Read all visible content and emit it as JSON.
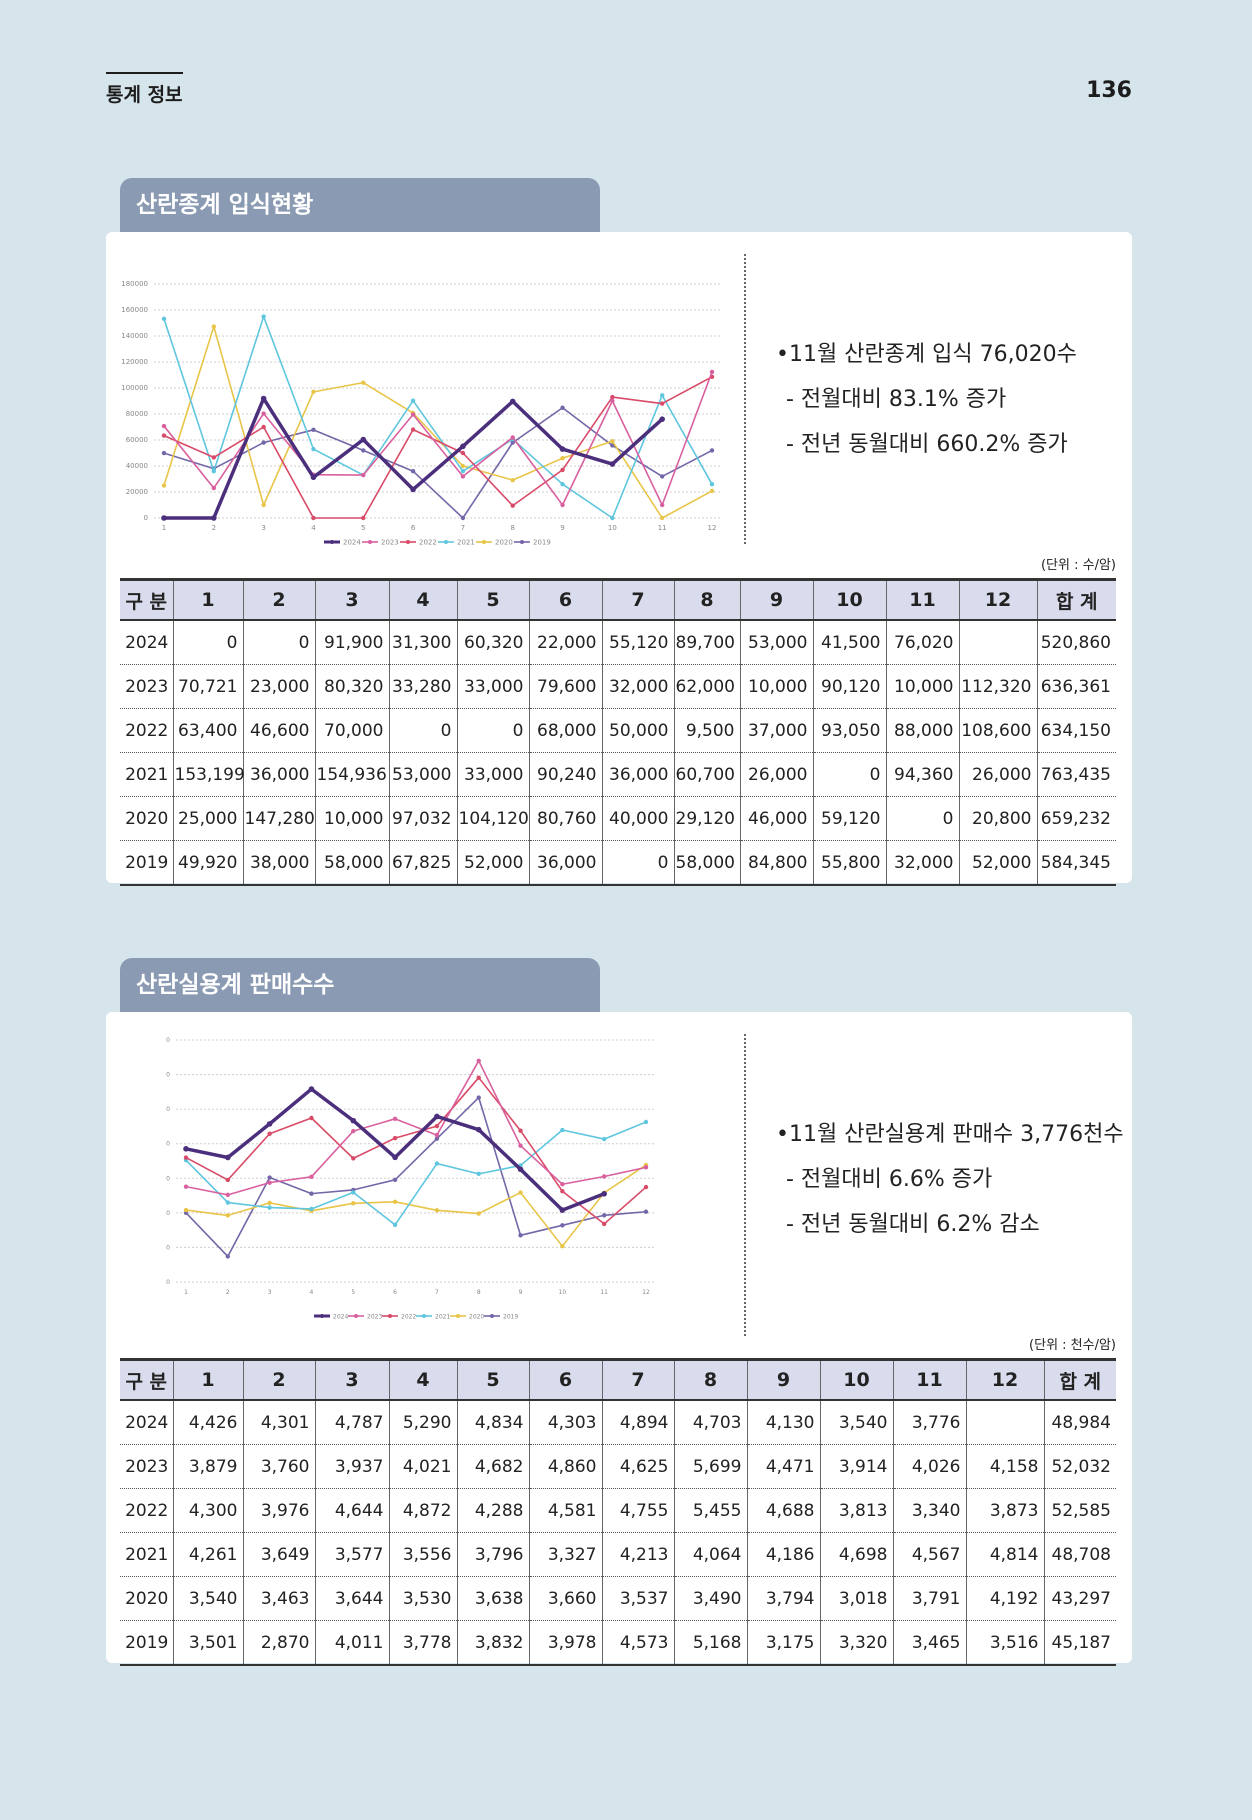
{
  "header": {
    "section": "통계 정보",
    "page": "136"
  },
  "section1": {
    "title": "산란종계 입식현황",
    "summary": {
      "bullet": "•11월 산란종계 입식 76,020수",
      "sub1": "- 전월대비 83.1% 증가",
      "sub2": "- 전년 동월대비 660.2% 증가"
    },
    "unit": "(단위 : 수/암)",
    "table": {
      "headers": [
        "구 분",
        "1",
        "2",
        "3",
        "4",
        "5",
        "6",
        "7",
        "8",
        "9",
        "10",
        "11",
        "12",
        "합 계"
      ],
      "rows": [
        [
          "2024",
          "0",
          "0",
          "91,900",
          "31,300",
          "60,320",
          "22,000",
          "55,120",
          "89,700",
          "53,000",
          "41,500",
          "76,020",
          "",
          "520,860"
        ],
        [
          "2023",
          "70,721",
          "23,000",
          "80,320",
          "33,280",
          "33,000",
          "79,600",
          "32,000",
          "62,000",
          "10,000",
          "90,120",
          "10,000",
          "112,320",
          "636,361"
        ],
        [
          "2022",
          "63,400",
          "46,600",
          "70,000",
          "0",
          "0",
          "68,000",
          "50,000",
          "9,500",
          "37,000",
          "93,050",
          "88,000",
          "108,600",
          "634,150"
        ],
        [
          "2021",
          "153,199",
          "36,000",
          "154,936",
          "53,000",
          "33,000",
          "90,240",
          "36,000",
          "60,700",
          "26,000",
          "0",
          "94,360",
          "26,000",
          "763,435"
        ],
        [
          "2020",
          "25,000",
          "147,280",
          "10,000",
          "97,032",
          "104,120",
          "80,760",
          "40,000",
          "29,120",
          "46,000",
          "59,120",
          "0",
          "20,800",
          "659,232"
        ],
        [
          "2019",
          "49,920",
          "38,000",
          "58,000",
          "67,825",
          "52,000",
          "36,000",
          "0",
          "58,000",
          "84,800",
          "55,800",
          "32,000",
          "52,000",
          "584,345"
        ]
      ]
    }
  },
  "section2": {
    "title": "산란실용계 판매수수",
    "summary": {
      "bullet": "•11월 산란실용계 판매수 3,776천수",
      "sub1": "- 전월대비 6.6% 증가",
      "sub2": "- 전년 동월대비 6.2% 감소"
    },
    "unit": "(단위 : 천수/암)",
    "table": {
      "headers": [
        "구 분",
        "1",
        "2",
        "3",
        "4",
        "5",
        "6",
        "7",
        "8",
        "9",
        "10",
        "11",
        "12",
        "합 계"
      ],
      "rows": [
        [
          "2024",
          "4,426",
          "4,301",
          "4,787",
          "5,290",
          "4,834",
          "4,303",
          "4,894",
          "4,703",
          "4,130",
          "3,540",
          "3,776",
          "",
          "48,984"
        ],
        [
          "2023",
          "3,879",
          "3,760",
          "3,937",
          "4,021",
          "4,682",
          "4,860",
          "4,625",
          "5,699",
          "4,471",
          "3,914",
          "4,026",
          "4,158",
          "52,032"
        ],
        [
          "2022",
          "4,300",
          "3,976",
          "4,644",
          "4,872",
          "4,288",
          "4,581",
          "4,755",
          "5,455",
          "4,688",
          "3,813",
          "3,340",
          "3,873",
          "52,585"
        ],
        [
          "2021",
          "4,261",
          "3,649",
          "3,577",
          "3,556",
          "3,796",
          "3,327",
          "4,213",
          "4,064",
          "4,186",
          "4,698",
          "4,567",
          "4,814",
          "48,708"
        ],
        [
          "2020",
          "3,540",
          "3,463",
          "3,644",
          "3,530",
          "3,638",
          "3,660",
          "3,537",
          "3,490",
          "3,794",
          "3,018",
          "3,791",
          "4,192",
          "43,297"
        ],
        [
          "2019",
          "3,501",
          "2,870",
          "4,011",
          "3,778",
          "3,832",
          "3,978",
          "4,573",
          "5,168",
          "3,175",
          "3,320",
          "3,465",
          "3,516",
          "45,187"
        ]
      ]
    }
  },
  "chart_data": [
    {
      "type": "line",
      "x": [
        1,
        2,
        3,
        4,
        5,
        6,
        7,
        8,
        9,
        10,
        11,
        12
      ],
      "ylim": [
        0,
        180000
      ],
      "yticks": [
        0,
        20000,
        40000,
        60000,
        80000,
        100000,
        120000,
        140000,
        160000,
        180000
      ],
      "ytick_labels": [
        "0",
        "20000",
        "40000",
        "60000",
        "80000",
        "100000",
        "120000",
        "140000",
        "160000",
        "180000"
      ],
      "legend_position": "bottom",
      "series": [
        {
          "name": "2024",
          "color": "#4b2e7c",
          "values": [
            0,
            0,
            91900,
            31300,
            60320,
            22000,
            55120,
            89700,
            53000,
            41500,
            76020,
            null
          ]
        },
        {
          "name": "2023",
          "color": "#d9609e",
          "values": [
            70721,
            23000,
            80320,
            33280,
            33000,
            79600,
            32000,
            62000,
            10000,
            90120,
            10000,
            112320
          ]
        },
        {
          "name": "2022",
          "color": "#d94a68",
          "values": [
            63400,
            46600,
            70000,
            0,
            0,
            68000,
            50000,
            9500,
            37000,
            93050,
            88000,
            108600
          ]
        },
        {
          "name": "2021",
          "color": "#5ec6de",
          "values": [
            153199,
            36000,
            154936,
            53000,
            33000,
            90240,
            36000,
            60700,
            26000,
            0,
            94360,
            26000
          ]
        },
        {
          "name": "2020",
          "color": "#e8c548",
          "values": [
            25000,
            147280,
            10000,
            97032,
            104120,
            80760,
            40000,
            29120,
            46000,
            59120,
            0,
            20800
          ]
        },
        {
          "name": "2019",
          "color": "#7466a8",
          "values": [
            49920,
            38000,
            58000,
            67825,
            52000,
            36000,
            0,
            58000,
            84800,
            55800,
            32000,
            52000
          ]
        }
      ]
    },
    {
      "type": "line",
      "x": [
        1,
        2,
        3,
        4,
        5,
        6,
        7,
        8,
        9,
        10,
        11,
        12
      ],
      "ylim": [
        2500,
        6000
      ],
      "yticks": [
        2500,
        3000,
        3500,
        4000,
        4500,
        5000,
        5500,
        6000
      ],
      "ytick_labels": [
        "2,500",
        "3,000",
        "3,500",
        "4,000",
        "4,500",
        "5,000",
        "5,500",
        "6,000"
      ],
      "legend_position": "bottom",
      "series": [
        {
          "name": "2024",
          "color": "#4b2e7c",
          "values": [
            4426,
            4301,
            4787,
            5290,
            4834,
            4303,
            4894,
            4703,
            4130,
            3540,
            3776,
            null
          ]
        },
        {
          "name": "2023",
          "color": "#d9609e",
          "values": [
            3879,
            3760,
            3937,
            4021,
            4682,
            4860,
            4625,
            5699,
            4471,
            3914,
            4026,
            4158
          ]
        },
        {
          "name": "2022",
          "color": "#d94a68",
          "values": [
            4300,
            3976,
            4644,
            4872,
            4288,
            4581,
            4755,
            5455,
            4688,
            3813,
            3340,
            3873
          ]
        },
        {
          "name": "2021",
          "color": "#5ec6de",
          "values": [
            4261,
            3649,
            3577,
            3556,
            3796,
            3327,
            4213,
            4064,
            4186,
            4698,
            4567,
            4814
          ]
        },
        {
          "name": "2020",
          "color": "#e8c548",
          "values": [
            3540,
            3463,
            3644,
            3530,
            3638,
            3660,
            3537,
            3490,
            3794,
            3018,
            3791,
            4192
          ]
        },
        {
          "name": "2019",
          "color": "#7466a8",
          "values": [
            3501,
            2870,
            4011,
            3778,
            3832,
            3978,
            4573,
            5168,
            3175,
            3320,
            3465,
            3516
          ]
        }
      ]
    }
  ]
}
